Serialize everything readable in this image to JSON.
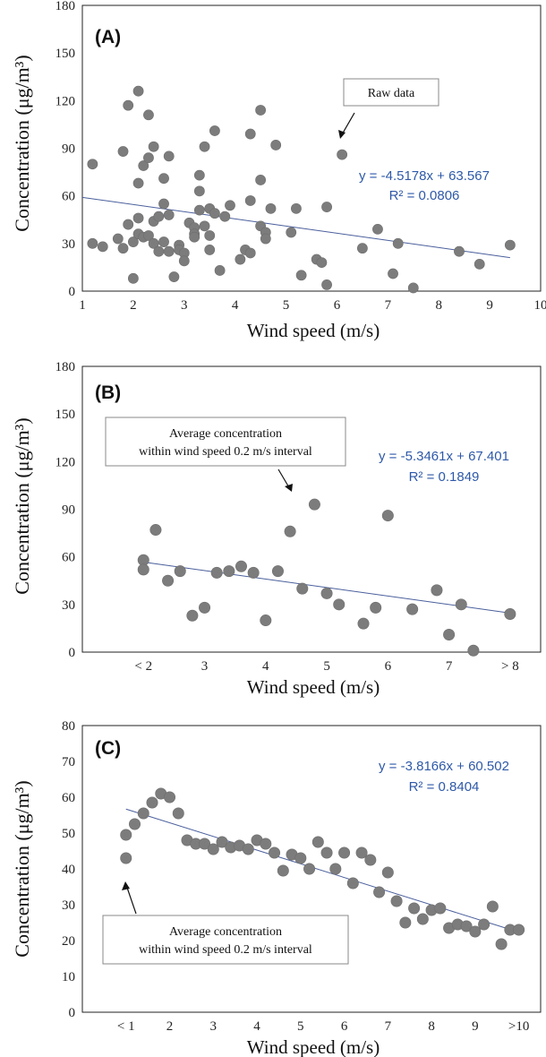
{
  "chart_data": [
    {
      "id": "A",
      "type": "scatter",
      "panel_label": "(A)",
      "xlabel": "Wind speed (m/s)",
      "ylabel": "Concentration (μg/m³)",
      "xlim": [
        1,
        10
      ],
      "ylim": [
        0,
        180
      ],
      "x_ticks": [
        "1",
        "2",
        "3",
        "4",
        "5",
        "6",
        "7",
        "8",
        "9",
        "10"
      ],
      "y_ticks": [
        "0",
        "30",
        "60",
        "90",
        "120",
        "150",
        "180"
      ],
      "equation": "y = -4.5178x + 63.567",
      "r2": "R² = 0.0806",
      "trend": {
        "slope": -4.5178,
        "intercept": 63.567,
        "x_range": [
          1.0,
          9.4
        ]
      },
      "callout": {
        "text_lines": [
          "Raw data"
        ],
        "arrow_target": [
          6.0,
          85
        ]
      },
      "points": [
        [
          1.2,
          80
        ],
        [
          1.2,
          30
        ],
        [
          1.4,
          28
        ],
        [
          1.7,
          33
        ],
        [
          1.8,
          88
        ],
        [
          1.8,
          27
        ],
        [
          1.9,
          117
        ],
        [
          1.9,
          42
        ],
        [
          2.0,
          31
        ],
        [
          2.0,
          8
        ],
        [
          2.1,
          126
        ],
        [
          2.1,
          68
        ],
        [
          2.1,
          46
        ],
        [
          2.1,
          36
        ],
        [
          2.2,
          79
        ],
        [
          2.2,
          34
        ],
        [
          2.3,
          111
        ],
        [
          2.3,
          84
        ],
        [
          2.3,
          35
        ],
        [
          2.4,
          91
        ],
        [
          2.4,
          44
        ],
        [
          2.4,
          30
        ],
        [
          2.5,
          47
        ],
        [
          2.5,
          25
        ],
        [
          2.6,
          71
        ],
        [
          2.6,
          55
        ],
        [
          2.6,
          31
        ],
        [
          2.7,
          85
        ],
        [
          2.7,
          48
        ],
        [
          2.7,
          25
        ],
        [
          2.8,
          9
        ],
        [
          2.9,
          29
        ],
        [
          2.9,
          26
        ],
        [
          3.0,
          24
        ],
        [
          3.0,
          19
        ],
        [
          3.1,
          43
        ],
        [
          3.2,
          40
        ],
        [
          3.2,
          36
        ],
        [
          3.2,
          34
        ],
        [
          3.3,
          73
        ],
        [
          3.3,
          63
        ],
        [
          3.3,
          51
        ],
        [
          3.4,
          91
        ],
        [
          3.4,
          41
        ],
        [
          3.5,
          52
        ],
        [
          3.5,
          35
        ],
        [
          3.5,
          26
        ],
        [
          3.6,
          101
        ],
        [
          3.6,
          49
        ],
        [
          3.7,
          13
        ],
        [
          3.8,
          47
        ],
        [
          3.9,
          54
        ],
        [
          4.1,
          20
        ],
        [
          4.2,
          26
        ],
        [
          4.3,
          99
        ],
        [
          4.3,
          57
        ],
        [
          4.3,
          24
        ],
        [
          4.5,
          114
        ],
        [
          4.5,
          70
        ],
        [
          4.5,
          41
        ],
        [
          4.6,
          37
        ],
        [
          4.6,
          33
        ],
        [
          4.7,
          52
        ],
        [
          4.8,
          92
        ],
        [
          5.1,
          37
        ],
        [
          5.2,
          52
        ],
        [
          5.3,
          10
        ],
        [
          5.6,
          20
        ],
        [
          5.7,
          18
        ],
        [
          5.8,
          53
        ],
        [
          5.8,
          4
        ],
        [
          6.1,
          86
        ],
        [
          6.5,
          27
        ],
        [
          6.8,
          39
        ],
        [
          7.1,
          11
        ],
        [
          7.2,
          30
        ],
        [
          7.5,
          2
        ],
        [
          8.4,
          25
        ],
        [
          8.8,
          17
        ],
        [
          9.4,
          29
        ]
      ]
    },
    {
      "id": "B",
      "type": "scatter",
      "panel_label": "(B)",
      "xlabel": "Wind speed (m/s)",
      "ylabel": "Concentration (μg/m³)",
      "xlim": [
        1,
        8.5
      ],
      "ylim": [
        0,
        180
      ],
      "x_ticks": [
        {
          "x": 2,
          "label": "< 2"
        },
        {
          "x": 3,
          "label": "3"
        },
        {
          "x": 4,
          "label": "4"
        },
        {
          "x": 5,
          "label": "5"
        },
        {
          "x": 6,
          "label": "6"
        },
        {
          "x": 7,
          "label": "7"
        },
        {
          "x": 8,
          "label": "> 8"
        }
      ],
      "y_ticks": [
        "0",
        "30",
        "60",
        "90",
        "120",
        "150",
        "180"
      ],
      "equation": "y = -5.3461x + 67.401",
      "r2": "R² = 0.1849",
      "trend": {
        "slope": -5.3461,
        "intercept": 67.401,
        "x_range": [
          2.0,
          8.0
        ]
      },
      "callout": {
        "text_lines": [
          "Average concentration",
          "within wind speed 0.2 m/s interval"
        ],
        "arrow_target": [
          4.8,
          93
        ]
      },
      "points": [
        [
          2.0,
          58
        ],
        [
          2.0,
          52
        ],
        [
          2.2,
          77
        ],
        [
          2.4,
          45
        ],
        [
          2.6,
          51
        ],
        [
          2.8,
          23
        ],
        [
          3.0,
          28
        ],
        [
          3.2,
          50
        ],
        [
          3.4,
          51
        ],
        [
          3.6,
          54
        ],
        [
          3.8,
          50
        ],
        [
          4.0,
          20
        ],
        [
          4.2,
          51
        ],
        [
          4.4,
          76
        ],
        [
          4.6,
          40
        ],
        [
          4.8,
          93
        ],
        [
          5.0,
          37
        ],
        [
          5.2,
          30
        ],
        [
          5.6,
          18
        ],
        [
          5.8,
          28
        ],
        [
          6.0,
          86
        ],
        [
          6.4,
          27
        ],
        [
          6.8,
          39
        ],
        [
          7.0,
          11
        ],
        [
          7.2,
          30
        ],
        [
          7.4,
          1
        ],
        [
          8.0,
          24
        ]
      ]
    },
    {
      "id": "C",
      "type": "scatter",
      "panel_label": "(C)",
      "xlabel": "Wind speed (m/s)",
      "ylabel": "Concentration (μg/m³)",
      "xlim": [
        0,
        10.5
      ],
      "ylim": [
        0,
        80
      ],
      "x_ticks": [
        {
          "x": 1,
          "label": "< 1"
        },
        {
          "x": 2,
          "label": "2"
        },
        {
          "x": 3,
          "label": "3"
        },
        {
          "x": 4,
          "label": "4"
        },
        {
          "x": 5,
          "label": "5"
        },
        {
          "x": 6,
          "label": "6"
        },
        {
          "x": 7,
          "label": "7"
        },
        {
          "x": 8,
          "label": "8"
        },
        {
          "x": 9,
          "label": "9"
        },
        {
          "x": 10,
          "label": ">10"
        }
      ],
      "y_ticks": [
        "0",
        "10",
        "20",
        "30",
        "40",
        "50",
        "60",
        "70",
        "80"
      ],
      "equation": "y = -3.8166x + 60.502",
      "r2": "R² = 0.8404",
      "trend": {
        "slope": -3.8166,
        "intercept": 60.502,
        "x_range": [
          1.0,
          10.0
        ]
      },
      "callout": {
        "text_lines": [
          "Average concentration",
          "within wind speed 0.2 m/s interval"
        ],
        "arrow_target": [
          1.0,
          45
        ]
      },
      "points": [
        [
          1.0,
          43
        ],
        [
          1.0,
          49.5
        ],
        [
          1.2,
          52.5
        ],
        [
          1.4,
          55.5
        ],
        [
          1.6,
          58.5
        ],
        [
          1.8,
          61
        ],
        [
          2.0,
          60
        ],
        [
          2.2,
          55.5
        ],
        [
          2.4,
          48
        ],
        [
          2.6,
          47
        ],
        [
          2.8,
          47
        ],
        [
          3.0,
          45.5
        ],
        [
          3.2,
          47.5
        ],
        [
          3.4,
          46
        ],
        [
          3.6,
          46.5
        ],
        [
          3.8,
          45.5
        ],
        [
          4.0,
          48
        ],
        [
          4.2,
          47
        ],
        [
          4.4,
          44.5
        ],
        [
          4.6,
          39.5
        ],
        [
          4.8,
          44
        ],
        [
          5.0,
          43
        ],
        [
          5.2,
          40
        ],
        [
          5.4,
          47.5
        ],
        [
          5.6,
          44.5
        ],
        [
          5.8,
          40
        ],
        [
          6.0,
          44.5
        ],
        [
          6.2,
          36
        ],
        [
          6.4,
          44.5
        ],
        [
          6.6,
          42.5
        ],
        [
          6.8,
          33.5
        ],
        [
          7.0,
          39
        ],
        [
          7.2,
          31
        ],
        [
          7.4,
          25
        ],
        [
          7.6,
          29
        ],
        [
          7.8,
          26
        ],
        [
          8.0,
          28.5
        ],
        [
          8.2,
          29
        ],
        [
          8.4,
          23.5
        ],
        [
          8.6,
          24.5
        ],
        [
          8.8,
          24
        ],
        [
          9.0,
          22.5
        ],
        [
          9.2,
          24.5
        ],
        [
          9.4,
          29.5
        ],
        [
          9.6,
          19
        ],
        [
          9.8,
          23
        ],
        [
          10.0,
          23
        ]
      ]
    }
  ]
}
